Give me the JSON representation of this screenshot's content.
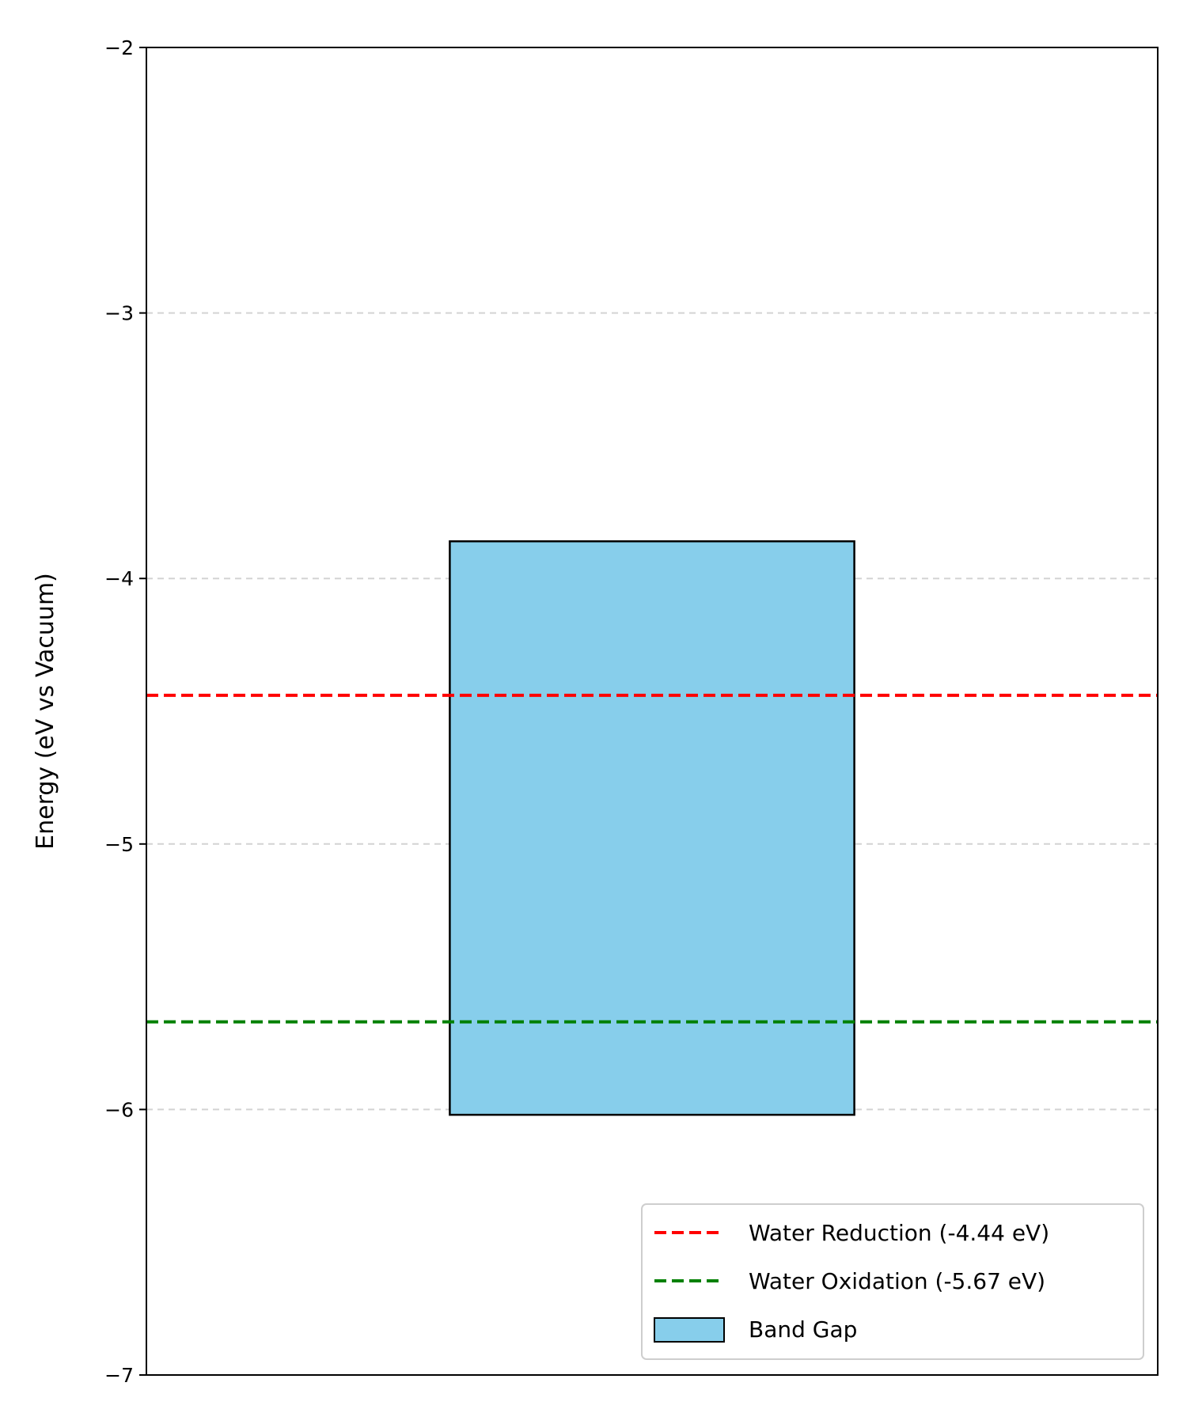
{
  "chart_data": {
    "type": "bar",
    "title": "",
    "xlabel": "",
    "ylabel": "Energy (eV vs Vacuum)",
    "ylim": [
      -7,
      -2
    ],
    "yticks": [
      -2,
      -3,
      -4,
      -5,
      -6,
      -7
    ],
    "ytick_labels": [
      "−2",
      "−3",
      "−4",
      "−5",
      "−6",
      "−7"
    ],
    "grid": true,
    "grid_axis": "y",
    "legend_position": "lower-right",
    "bars": [
      {
        "name": "Band Gap",
        "bottom": -6.02,
        "top": -3.86,
        "color": "#87CEEB",
        "edgecolor": "#000000"
      }
    ],
    "reference_lines": [
      {
        "name": "Water Reduction (-4.44 eV)",
        "value": -4.44,
        "color": "#ff0000",
        "style": "dashed"
      },
      {
        "name": "Water Oxidation (-5.67 eV)",
        "value": -5.67,
        "color": "#008000",
        "style": "dashed"
      }
    ],
    "legend": [
      {
        "label": "Water Reduction (-4.44 eV)",
        "kind": "line",
        "color": "#ff0000"
      },
      {
        "label": "Water Oxidation (-5.67 eV)",
        "kind": "line",
        "color": "#008000"
      },
      {
        "label": "Band Gap",
        "kind": "patch",
        "color": "#87CEEB"
      }
    ]
  }
}
